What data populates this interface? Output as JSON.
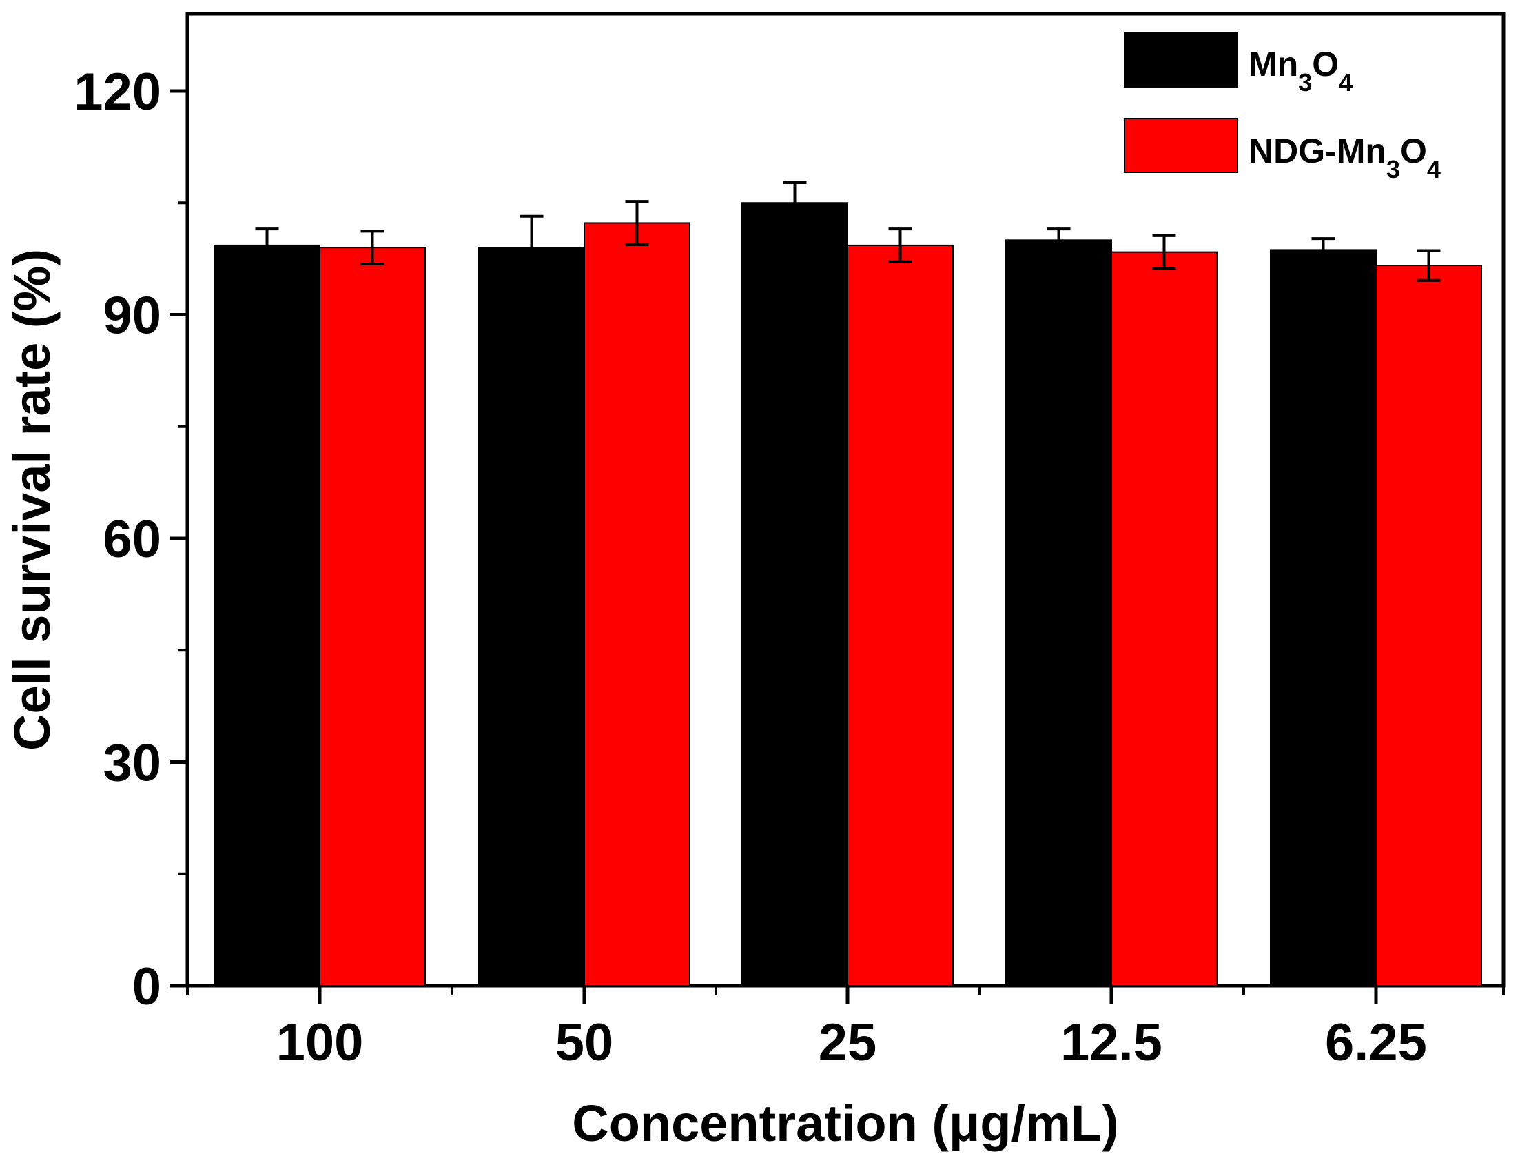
{
  "chart_data": {
    "type": "bar",
    "title": "",
    "xlabel": "Concentration (μg/mL)",
    "ylabel": "Cell survival rate (%)",
    "categories": [
      "100",
      "50",
      "25",
      "12.5",
      "6.25"
    ],
    "ylim": [
      0,
      130
    ],
    "yticks": [
      0,
      30,
      60,
      90,
      120
    ],
    "ytick_labels": [
      "0",
      "30",
      "60",
      "90",
      "120"
    ],
    "legend_position": "top-right",
    "series": [
      {
        "name": "Mn3O4",
        "label_parts": [
          "Mn",
          "3",
          "O",
          "4"
        ],
        "color": "#000000",
        "values": [
          99.3,
          99.0,
          105.0,
          100.0,
          98.7
        ],
        "errors": [
          2.2,
          4.2,
          2.7,
          1.5,
          1.5
        ]
      },
      {
        "name": "NDG-Mn3O4",
        "label_parts": [
          "NDG-Mn",
          "3",
          "O",
          "4"
        ],
        "color": "#ff0000",
        "values": [
          99.0,
          102.3,
          99.3,
          98.4,
          96.6
        ],
        "errors": [
          2.2,
          2.9,
          2.2,
          2.2,
          2.0
        ]
      }
    ]
  }
}
